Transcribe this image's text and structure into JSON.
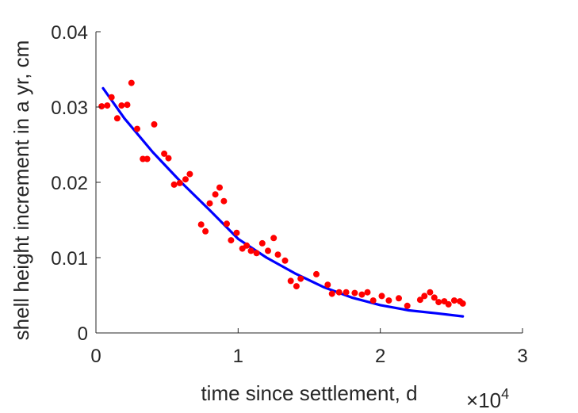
{
  "chart_data": {
    "type": "scatter",
    "xlabel": "time since settlement, d",
    "ylabel": "shell height increment in a yr, cm",
    "x_exponent": {
      "times": "×",
      "base": "10",
      "power": "4"
    },
    "xlim": [
      0,
      30000
    ],
    "ylim": [
      0,
      0.04
    ],
    "xticks": [
      0,
      10000,
      20000,
      30000
    ],
    "xtick_labels": [
      "0",
      "1",
      "2",
      "3"
    ],
    "yticks": [
      0,
      0.01,
      0.02,
      0.03,
      0.04
    ],
    "ytick_labels": [
      "0",
      "0.01",
      "0.02",
      "0.03",
      "0.04"
    ],
    "grid": false,
    "series": [
      {
        "kind": "scatter",
        "color": "#ff0000",
        "points": [
          [
            400,
            0.0301
          ],
          [
            800,
            0.0302
          ],
          [
            1100,
            0.0313
          ],
          [
            1500,
            0.0285
          ],
          [
            1800,
            0.0302
          ],
          [
            2200,
            0.0303
          ],
          [
            2500,
            0.0332
          ],
          [
            2900,
            0.0271
          ],
          [
            3300,
            0.0231
          ],
          [
            3600,
            0.0231
          ],
          [
            4100,
            0.0277
          ],
          [
            4800,
            0.0238
          ],
          [
            5100,
            0.0232
          ],
          [
            5500,
            0.0197
          ],
          [
            5900,
            0.0199
          ],
          [
            6300,
            0.0204
          ],
          [
            6600,
            0.0211
          ],
          [
            7400,
            0.0144
          ],
          [
            7700,
            0.0135
          ],
          [
            8000,
            0.0172
          ],
          [
            8400,
            0.0184
          ],
          [
            8700,
            0.0193
          ],
          [
            9000,
            0.0175
          ],
          [
            9200,
            0.0145
          ],
          [
            9500,
            0.0123
          ],
          [
            9900,
            0.0133
          ],
          [
            10300,
            0.0112
          ],
          [
            10600,
            0.0116
          ],
          [
            10900,
            0.0109
          ],
          [
            11300,
            0.0106
          ],
          [
            11700,
            0.0119
          ],
          [
            12100,
            0.0109
          ],
          [
            12500,
            0.0126
          ],
          [
            12800,
            0.0104
          ],
          [
            13300,
            0.0096
          ],
          [
            13700,
            0.0069
          ],
          [
            14100,
            0.0062
          ],
          [
            14400,
            0.0072
          ],
          [
            15500,
            0.0078
          ],
          [
            16300,
            0.0064
          ],
          [
            16600,
            0.0052
          ],
          [
            17100,
            0.0054
          ],
          [
            17600,
            0.0054
          ],
          [
            18200,
            0.0053
          ],
          [
            18700,
            0.0051
          ],
          [
            19100,
            0.0054
          ],
          [
            19500,
            0.0043
          ],
          [
            20100,
            0.0049
          ],
          [
            20600,
            0.0043
          ],
          [
            21300,
            0.0046
          ],
          [
            21900,
            0.0036
          ],
          [
            22800,
            0.0044
          ],
          [
            23100,
            0.0049
          ],
          [
            23500,
            0.0054
          ],
          [
            23800,
            0.0047
          ],
          [
            24100,
            0.0041
          ],
          [
            24500,
            0.0042
          ],
          [
            24800,
            0.0038
          ],
          [
            25200,
            0.0043
          ],
          [
            25600,
            0.0042
          ],
          [
            25800,
            0.0039
          ]
        ]
      },
      {
        "kind": "line",
        "color": "#0000ff",
        "points": [
          [
            500,
            0.0325
          ],
          [
            2000,
            0.0285
          ],
          [
            4000,
            0.024
          ],
          [
            6000,
            0.02
          ],
          [
            8000,
            0.0163
          ],
          [
            10000,
            0.0125
          ],
          [
            12000,
            0.01
          ],
          [
            14000,
            0.0079
          ],
          [
            16000,
            0.0061
          ],
          [
            18000,
            0.0047
          ],
          [
            20000,
            0.0037
          ],
          [
            22000,
            0.003
          ],
          [
            24000,
            0.0026
          ],
          [
            25800,
            0.0022
          ]
        ]
      }
    ]
  }
}
